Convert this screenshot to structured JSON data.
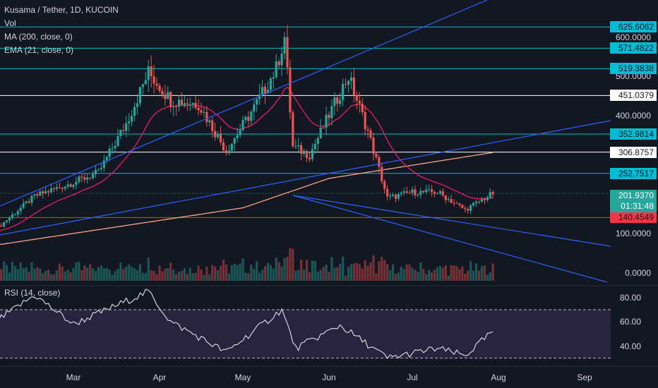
{
  "header": {
    "title": "Kusama / Tether, 1D, KUCOIN",
    "vol_label": "Vol",
    "ma_label": "MA (200, close, 0)",
    "ema_label": "EMA (21, close, 0)"
  },
  "rsi_panel": {
    "label": "RSI (14, close)"
  },
  "colors": {
    "background": "#131722",
    "up": "#26a69a",
    "down": "#ef5350",
    "ema": "#e91e63",
    "ma": "#f7a38a",
    "trend": "#2962ff",
    "hline_cyan": "#00bcd4",
    "hline_white": "#ffffff",
    "hline_red": "#f23645",
    "rsi_line": "#d1d4dc",
    "rsi_band": "#3b2d58"
  },
  "price_axis": {
    "ticks": [
      "600.0000",
      "500.0000",
      "400.0000",
      "300.0000",
      "200.0000",
      "100.0000",
      "0.0000"
    ]
  },
  "rsi_axis": {
    "ticks": [
      "80.00",
      "60.00",
      "40.00"
    ]
  },
  "time_axis": {
    "ticks": [
      "Mar",
      "Apr",
      "May",
      "Jun",
      "Jul",
      "Aug",
      "Sep"
    ]
  },
  "level_labels": [
    {
      "text": "625.6062",
      "kind": "cyan"
    },
    {
      "text": "571.4822",
      "kind": "cyan"
    },
    {
      "text": "519.3838",
      "kind": "cyan"
    },
    {
      "text": "451.0379",
      "kind": "white"
    },
    {
      "text": "352.9814",
      "kind": "cyan"
    },
    {
      "text": "306.8757",
      "kind": "white"
    },
    {
      "text": "252.7517",
      "kind": "cyan"
    },
    {
      "text": "140.4549",
      "kind": "red"
    }
  ],
  "current": {
    "price": "201.9370",
    "countdown": "01:31:48"
  },
  "chart_data": {
    "type": "candlestick",
    "title": "Kusama / Tether, 1D, KUCOIN",
    "price_key_points": [
      {
        "date": "Feb 01",
        "close": 110
      },
      {
        "date": "Feb 15",
        "close": 195
      },
      {
        "date": "Mar 01",
        "close": 230
      },
      {
        "date": "Mar 10",
        "close": 255
      },
      {
        "date": "Mar 20",
        "close": 380
      },
      {
        "date": "Mar 28",
        "close": 510
      },
      {
        "date": "Apr 05",
        "close": 440
      },
      {
        "date": "Apr 15",
        "close": 430
      },
      {
        "date": "Apr 25",
        "close": 310
      },
      {
        "date": "May 05",
        "close": 420
      },
      {
        "date": "May 13",
        "close": 520
      },
      {
        "date": "May 16",
        "close": 600
      },
      {
        "date": "May 19",
        "close": 320
      },
      {
        "date": "May 25",
        "close": 300
      },
      {
        "date": "Jun 03",
        "close": 430
      },
      {
        "date": "Jun 08",
        "close": 500
      },
      {
        "date": "Jun 15",
        "close": 360
      },
      {
        "date": "Jun 22",
        "close": 190
      },
      {
        "date": "Jul 01",
        "close": 205
      },
      {
        "date": "Jul 10",
        "close": 205
      },
      {
        "date": "Jul 20",
        "close": 160
      },
      {
        "date": "Jul 30",
        "close": 201.937
      }
    ],
    "ma200_key_points": [
      {
        "date": "Feb 01",
        "value": 70
      },
      {
        "date": "May 01",
        "value": 165
      },
      {
        "date": "Jun 01",
        "value": 240
      },
      {
        "date": "Jul 30",
        "value": 306
      }
    ],
    "rsi_key_points": [
      {
        "date": "Feb 01",
        "value": 60
      },
      {
        "date": "Feb 15",
        "value": 82
      },
      {
        "date": "Mar 01",
        "value": 58
      },
      {
        "date": "Mar 28",
        "value": 85
      },
      {
        "date": "Apr 05",
        "value": 60
      },
      {
        "date": "Apr 25",
        "value": 35
      },
      {
        "date": "May 15",
        "value": 70
      },
      {
        "date": "May 20",
        "value": 38
      },
      {
        "date": "Jun 05",
        "value": 57
      },
      {
        "date": "Jun 22",
        "value": 30
      },
      {
        "date": "Jul 10",
        "value": 38
      },
      {
        "date": "Jul 20",
        "value": 32
      },
      {
        "date": "Jul 30",
        "value": 52
      }
    ],
    "horizontal_levels": [
      625.6062,
      571.4822,
      519.3838,
      451.0379,
      352.9814,
      306.8757,
      252.7517,
      140.4549
    ],
    "current_price": 201.937,
    "rsi_bands": [
      70,
      30
    ],
    "x_range": [
      "Feb 01",
      "Sep 15"
    ],
    "grid": false
  }
}
